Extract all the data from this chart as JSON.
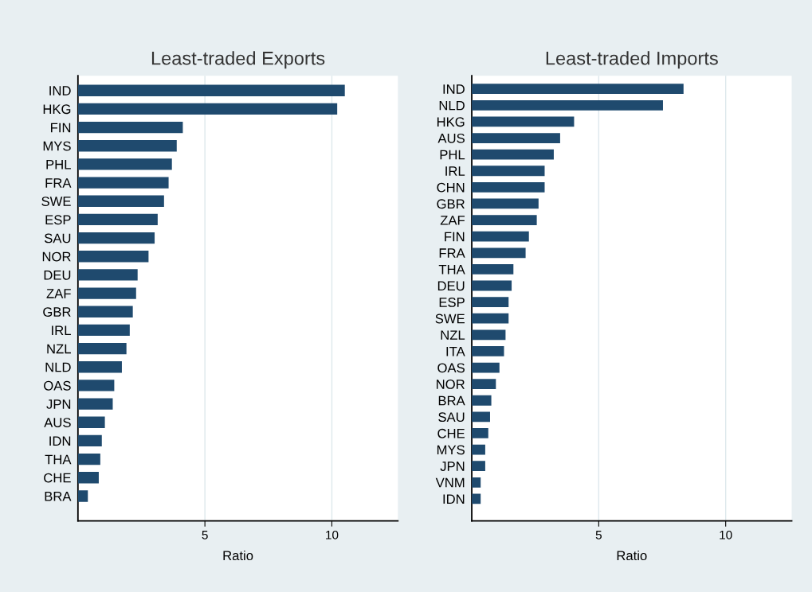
{
  "chart_data": [
    {
      "type": "bar",
      "orientation": "horizontal",
      "title": "Least-traded Exports",
      "xlabel": "Ratio",
      "color": "#1f4a6e",
      "grid": "x",
      "xlim": [
        0,
        12.6
      ],
      "xticks": [
        5,
        10
      ],
      "categories": [
        "IND",
        "HKG",
        "FIN",
        "MYS",
        "PHL",
        "FRA",
        "SWE",
        "ESP",
        "SAU",
        "NOR",
        "DEU",
        "ZAF",
        "GBR",
        "IRL",
        "NZL",
        "NLD",
        "OAS",
        "JPN",
        "AUS",
        "IDN",
        "THA",
        "CHE",
        "BRA"
      ],
      "values": [
        10.51,
        10.21,
        4.13,
        3.89,
        3.7,
        3.57,
        3.39,
        3.14,
        3.02,
        2.78,
        2.35,
        2.29,
        2.16,
        2.04,
        1.91,
        1.73,
        1.43,
        1.37,
        1.06,
        0.94,
        0.88,
        0.82,
        0.39
      ]
    },
    {
      "type": "bar",
      "orientation": "horizontal",
      "title": "Least-traded Imports",
      "xlabel": "Ratio",
      "color": "#1f4a6e",
      "grid": "x",
      "xlim": [
        0,
        12.6
      ],
      "xticks": [
        5,
        10
      ],
      "categories": [
        "IND",
        "NLD",
        "HKG",
        "AUS",
        "PHL",
        "IRL",
        "CHN",
        "GBR",
        "ZAF",
        "FIN",
        "FRA",
        "THA",
        "DEU",
        "ESP",
        "SWE",
        "NZL",
        "ITA",
        "OAS",
        "NOR",
        "BRA",
        "SAU",
        "CHE",
        "MYS",
        "JPN",
        "VNM",
        "IDN"
      ],
      "values": [
        8.34,
        7.53,
        4.03,
        3.48,
        3.23,
        2.87,
        2.87,
        2.63,
        2.56,
        2.25,
        2.12,
        1.64,
        1.57,
        1.45,
        1.45,
        1.33,
        1.27,
        1.09,
        0.95,
        0.77,
        0.72,
        0.65,
        0.53,
        0.53,
        0.35,
        0.35
      ]
    }
  ]
}
